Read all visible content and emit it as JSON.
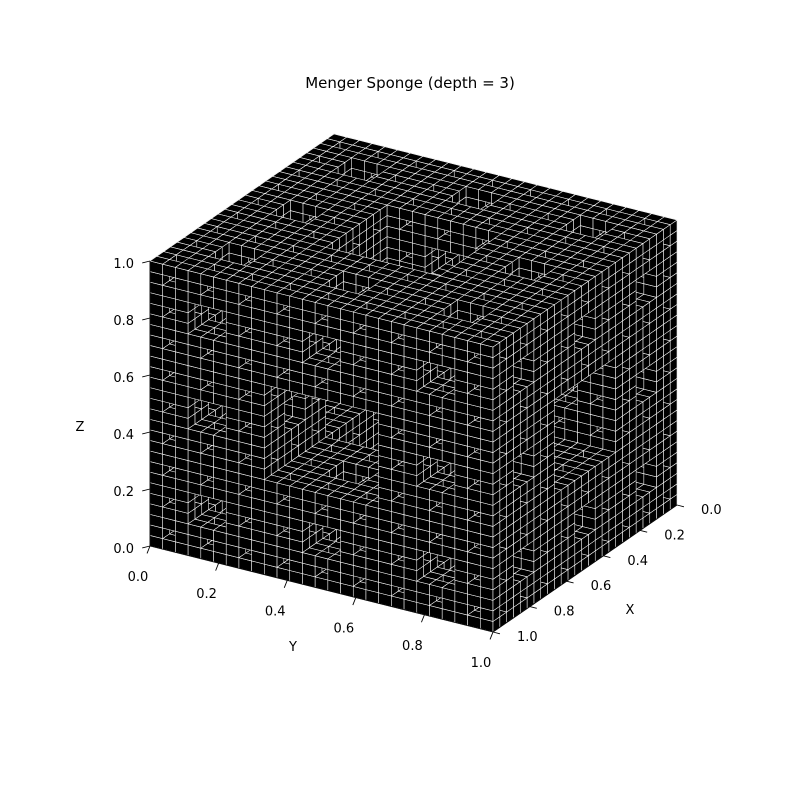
{
  "chart_data": {
    "type": "voxel-3d",
    "title": "Menger Sponge (depth = 3)",
    "depth": 3,
    "grid_cells_per_axis": 27,
    "xlabel": "X",
    "ylabel": "Y",
    "zlabel": "Z",
    "xlim": [
      0.0,
      1.0
    ],
    "ylim": [
      0.0,
      1.0
    ],
    "zlim": [
      0.0,
      1.0
    ],
    "x_ticks": [
      "0.0",
      "0.2",
      "0.4",
      "0.6",
      "0.8",
      "1.0"
    ],
    "y_ticks": [
      "0.0",
      "0.2",
      "0.4",
      "0.6",
      "0.8",
      "1.0"
    ],
    "z_ticks": [
      "0.0",
      "0.2",
      "0.4",
      "0.6",
      "0.8",
      "1.0"
    ],
    "face_color": "#000000",
    "edge_color": "#ffffff",
    "grid": true
  }
}
